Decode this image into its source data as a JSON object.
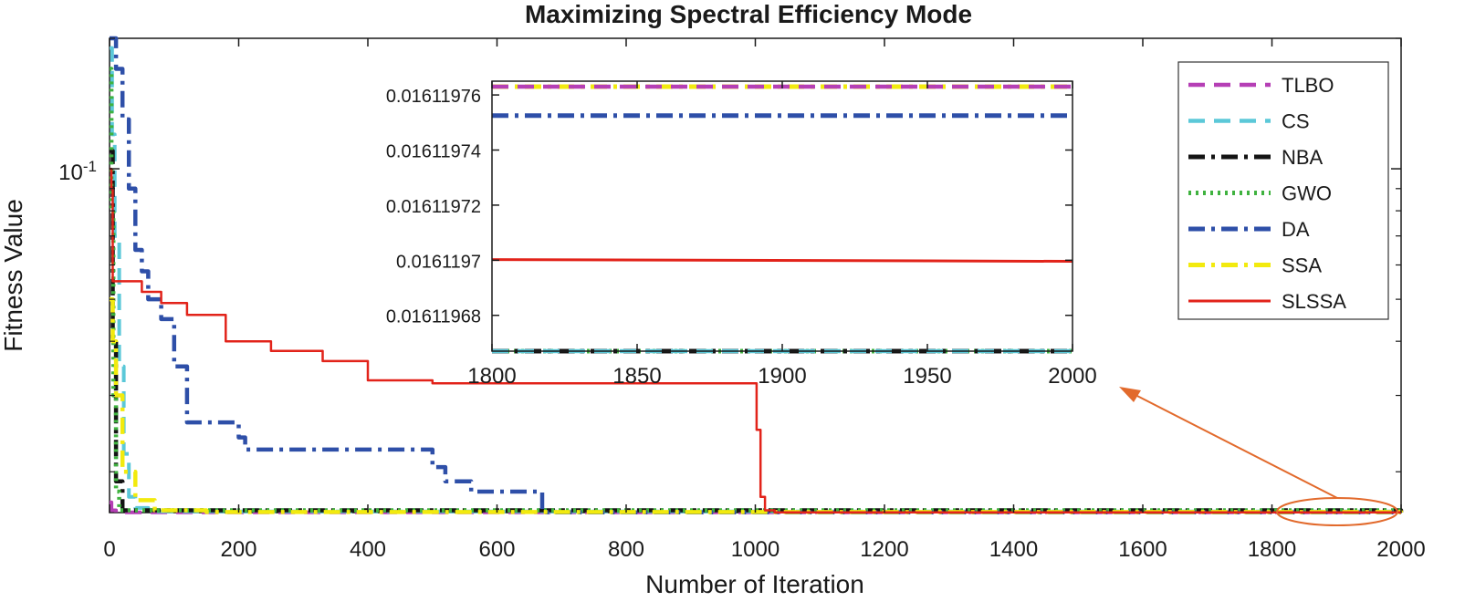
{
  "chart_data": [
    {
      "type": "line",
      "title": "Maximizing Spectral Efficiency Mode",
      "xlabel": "Number of Iteration",
      "ylabel": "Fitness Value",
      "xlim": [
        0,
        2000
      ],
      "ylim": [
        0.0161,
        0.2
      ],
      "yscale": "log",
      "xticks": [
        "0",
        "200",
        "400",
        "600",
        "800",
        "1000",
        "1200",
        "1400",
        "1600",
        "1800",
        "2000"
      ],
      "yticks": [
        {
          "label": "10",
          "exponent": "-1",
          "value": 0.1
        }
      ],
      "grid": false,
      "legend_position": "top-right",
      "series": [
        {
          "name": "TLBO",
          "color": "#b53fb5",
          "dash": "dashed",
          "points": [
            [
              0,
              0.017
            ],
            [
              3,
              0.0163
            ],
            [
              10,
              0.01612
            ],
            [
              2000,
              0.01612
            ]
          ]
        },
        {
          "name": "CS",
          "color": "#5bc8d8",
          "dash": "dashed",
          "points": [
            [
              0,
              0.19
            ],
            [
              4,
              0.12
            ],
            [
              8,
              0.07
            ],
            [
              15,
              0.035
            ],
            [
              22,
              0.022
            ],
            [
              30,
              0.0175
            ],
            [
              40,
              0.0165
            ],
            [
              60,
              0.0162
            ],
            [
              2000,
              0.01612
            ]
          ]
        },
        {
          "name": "NBA",
          "color": "#141414",
          "dash": "dashdot",
          "points": [
            [
              0,
              0.11
            ],
            [
              5,
              0.04
            ],
            [
              10,
              0.019
            ],
            [
              20,
              0.0163
            ],
            [
              2000,
              0.01612
            ]
          ]
        },
        {
          "name": "GWO",
          "color": "#3fb23f",
          "dash": "dotted",
          "points": [
            [
              0,
              0.17
            ],
            [
              3,
              0.08
            ],
            [
              6,
              0.03
            ],
            [
              10,
              0.018
            ],
            [
              15,
              0.0163
            ],
            [
              2000,
              0.01612
            ]
          ]
        },
        {
          "name": "DA",
          "color": "#2e4fa8",
          "dash": "dashdot",
          "points": [
            [
              0,
              0.2
            ],
            [
              10,
              0.17
            ],
            [
              20,
              0.13
            ],
            [
              30,
              0.09
            ],
            [
              40,
              0.065
            ],
            [
              50,
              0.058
            ],
            [
              60,
              0.05
            ],
            [
              80,
              0.045
            ],
            [
              100,
              0.035
            ],
            [
              120,
              0.026
            ],
            [
              150,
              0.026
            ],
            [
              200,
              0.024
            ],
            [
              210,
              0.0225
            ],
            [
              480,
              0.0225
            ],
            [
              500,
              0.0205
            ],
            [
              520,
              0.019
            ],
            [
              560,
              0.018
            ],
            [
              665,
              0.018
            ],
            [
              670,
              0.0161203
            ],
            [
              2000,
              0.0161197525
            ]
          ]
        },
        {
          "name": "SSA",
          "color": "#f2ea0e",
          "dash": "dashdot",
          "points": [
            [
              0,
              0.05
            ],
            [
              5,
              0.04
            ],
            [
              10,
              0.03
            ],
            [
              20,
              0.02
            ],
            [
              40,
              0.0172
            ],
            [
              70,
              0.0163
            ],
            [
              150,
              0.01615
            ],
            [
              2000,
              0.016119763
            ]
          ]
        },
        {
          "name": "SLSSA",
          "color": "#e2231a",
          "dash": "solid",
          "points": [
            [
              0,
              0.1
            ],
            [
              3,
              0.09
            ],
            [
              5,
              0.055
            ],
            [
              50,
              0.052
            ],
            [
              80,
              0.049
            ],
            [
              120,
              0.046
            ],
            [
              180,
              0.04
            ],
            [
              250,
              0.038
            ],
            [
              330,
              0.036
            ],
            [
              400,
              0.0325
            ],
            [
              500,
              0.032
            ],
            [
              1000,
              0.032
            ],
            [
              1002,
              0.025
            ],
            [
              1008,
              0.0175
            ],
            [
              1015,
              0.0163
            ],
            [
              1030,
              0.0161203
            ],
            [
              2000,
              0.0161197
            ]
          ]
        }
      ],
      "annotation": "arrow from the highlighted region at iterations 1800–2000 to the zoomed inset"
    },
    {
      "type": "line",
      "role": "inset",
      "xlim": [
        1800,
        2000
      ],
      "ylim": [
        0.016119667,
        0.016119765
      ],
      "xticks": [
        "1800",
        "1850",
        "1900",
        "1950",
        "2000"
      ],
      "yticks": [
        {
          "label": "0.01611968",
          "value": 0.01611968
        },
        {
          "label": "0.0161197",
          "value": 0.0161197
        },
        {
          "label": "0.01611972",
          "value": 0.01611972
        },
        {
          "label": "0.01611974",
          "value": 0.01611974
        },
        {
          "label": "0.01611976",
          "value": 0.01611976
        }
      ],
      "series": [
        {
          "name": "SSA",
          "y": 0.016119763
        },
        {
          "name": "TLBO",
          "y": 0.016119763
        },
        {
          "name": "DA",
          "y": 0.0161197525
        },
        {
          "name": "SLSSA",
          "y_start": 0.01611970025,
          "y_end": 0.0161196996
        },
        {
          "name": "GWO",
          "y": 0.016119667
        },
        {
          "name": "NBA",
          "y": 0.016119667
        },
        {
          "name": "CS",
          "y": 0.016119667
        }
      ]
    }
  ]
}
